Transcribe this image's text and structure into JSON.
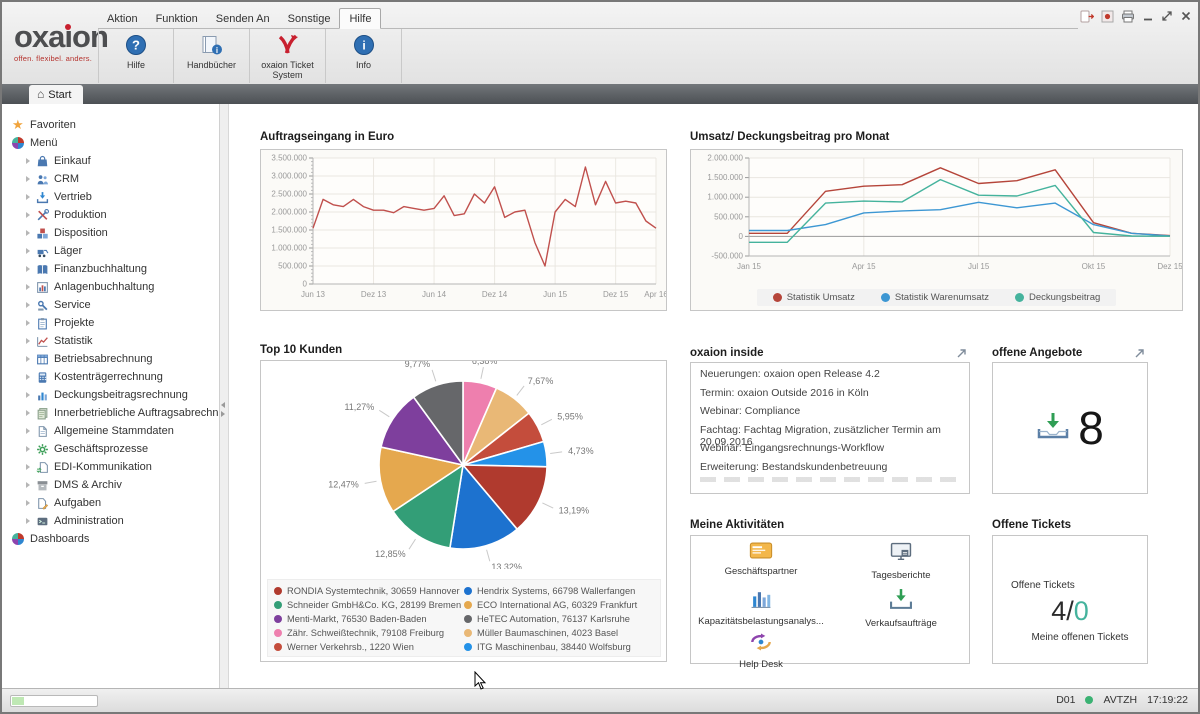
{
  "window": {
    "menu_items": [
      "Aktion",
      "Funktion",
      "Senden An",
      "Sonstige",
      "Hilfe"
    ],
    "active_menu_item": "Hilfe",
    "logo_text": "oxaıon",
    "logo_tagline": "offen. flexibel. anders.",
    "toolbar_buttons": [
      {
        "label": "Hilfe",
        "icon": "help-circle-icon"
      },
      {
        "label": "Handbücher",
        "icon": "manual-book-icon"
      },
      {
        "label": "oxaion Ticket System",
        "icon": "oxaion-bird-icon"
      },
      {
        "label": "Info",
        "icon": "info-circle-icon"
      }
    ],
    "tab_label": "Start"
  },
  "sidebar": {
    "favorites_label": "Favoriten",
    "menu_label": "Menü",
    "dashboards_label": "Dashboards",
    "modules": [
      {
        "label": "Einkauf",
        "icon": "bag-icon"
      },
      {
        "label": "CRM",
        "icon": "people-icon"
      },
      {
        "label": "Vertrieb",
        "icon": "tray-arrow-icon"
      },
      {
        "label": "Produktion",
        "icon": "tools-icon"
      },
      {
        "label": "Disposition",
        "icon": "boxes-icon"
      },
      {
        "label": "Läger",
        "icon": "forklift-icon"
      },
      {
        "label": "Finanzbuchhaltung",
        "icon": "book-icon"
      },
      {
        "label": "Anlagenbuchhaltung",
        "icon": "chart-frame-icon"
      },
      {
        "label": "Service",
        "icon": "service-icon"
      },
      {
        "label": "Projekte",
        "icon": "clipboard-icon"
      },
      {
        "label": "Statistik",
        "icon": "chart-line-icon"
      },
      {
        "label": "Betriebsabrechnung",
        "icon": "table-icon"
      },
      {
        "label": "Kostenträgerrechnung",
        "icon": "calculator-icon"
      },
      {
        "label": "Deckungsbeitragsrechnung",
        "icon": "chart-bars-icon"
      },
      {
        "label": "Innerbetriebliche Auftragsabrechnung",
        "icon": "document-stack-icon"
      },
      {
        "label": "Allgemeine Stammdaten",
        "icon": "document-icon"
      },
      {
        "label": "Geschäftsprozesse",
        "icon": "gear-icon"
      },
      {
        "label": "EDI-Kommunikation",
        "icon": "document-arrows-icon"
      },
      {
        "label": "DMS & Archiv",
        "icon": "archive-icon"
      },
      {
        "label": "Aufgaben",
        "icon": "document-pencil-icon"
      },
      {
        "label": "Administration",
        "icon": "terminal-icon"
      }
    ]
  },
  "chart_data": [
    {
      "type": "line",
      "title": "Auftragseingang in Euro",
      "series": [
        {
          "name": "Auftragseingang",
          "color": "#c0504d",
          "values": [
            1550000,
            2350000,
            2200000,
            2150000,
            2350000,
            2150000,
            2050000,
            2050000,
            1980000,
            2150000,
            2100000,
            2050000,
            2100000,
            2450000,
            1900000,
            1950000,
            2500000,
            2250000,
            2700000,
            1850000,
            2000000,
            2050000,
            1150000,
            500000,
            2000000,
            2350000,
            2150000,
            3250000,
            2200000,
            2850000,
            2250000,
            2300000,
            2250000,
            1750000,
            1550000
          ]
        }
      ],
      "x_tick_labels": [
        {
          "index": 0,
          "label": "Jun 13"
        },
        {
          "index": 6,
          "label": "Dez 13"
        },
        {
          "index": 12,
          "label": "Jun 14"
        },
        {
          "index": 18,
          "label": "Dez 14"
        },
        {
          "index": 24,
          "label": "Jun 15"
        },
        {
          "index": 30,
          "label": "Dez 15"
        },
        {
          "index": 34,
          "label": "Apr 16"
        }
      ],
      "ylim": [
        0,
        3500000
      ],
      "ytick_step": 500000,
      "grid": true
    },
    {
      "type": "line",
      "title": "Umsatz/ Deckungsbeitrag pro Monat",
      "series": [
        {
          "name": "Statistik Umsatz",
          "color": "#b5453a",
          "values": [
            80000,
            80000,
            1150000,
            1280000,
            1320000,
            1750000,
            1350000,
            1420000,
            1700000,
            350000,
            80000,
            20000
          ]
        },
        {
          "name": "Statistik Warenumsatz",
          "color": "#3d97d3",
          "values": [
            150000,
            150000,
            300000,
            600000,
            650000,
            680000,
            870000,
            730000,
            850000,
            300000,
            80000,
            10000
          ]
        },
        {
          "name": "Deckungsbeitrag",
          "color": "#45b39d",
          "values": [
            -150000,
            -150000,
            850000,
            900000,
            880000,
            1450000,
            1050000,
            1030000,
            1300000,
            100000,
            10000,
            5000
          ]
        }
      ],
      "x_tick_labels": [
        {
          "index": 0,
          "label": "Jan 15"
        },
        {
          "index": 3,
          "label": "Apr 15"
        },
        {
          "index": 6,
          "label": "Jul 15"
        },
        {
          "index": 9,
          "label": "Okt 15"
        },
        {
          "index": 11,
          "label": "Dez 15"
        }
      ],
      "ylim": [
        -500000,
        2000000
      ],
      "ytick_step": 500000,
      "grid": true,
      "legend": [
        "Statistik Umsatz",
        "Statistik Warenumsatz",
        "Deckungsbeitrag"
      ],
      "legend_position": "bottom"
    },
    {
      "type": "pie",
      "title": "Top 10 Kunden",
      "slices": [
        {
          "label": "Zähr. Schweißtechnik, 79108 Freiburg",
          "value": 6.38,
          "pct_label": "6,38%",
          "color": "#ee7fae"
        },
        {
          "label": "Müller Baumaschinen, 4023 Basel",
          "value": 7.67,
          "pct_label": "7,67%",
          "color": "#e9b876"
        },
        {
          "label": "Werner Verkehrsb., 1220 Wien",
          "value": 5.95,
          "pct_label": "5,95%",
          "color": "#c44d3c"
        },
        {
          "label": "ITG Maschinenbau, 38440 Wolfsburg",
          "value": 4.73,
          "pct_label": "4,73%",
          "color": "#2492e8"
        },
        {
          "label": "RONDIA Systemtechnik, 30659 Hannover",
          "value": 13.19,
          "pct_label": "13,19%",
          "color": "#b03a2e"
        },
        {
          "label": "Hendrix Systems, 66798 Wallerfangen",
          "value": 13.32,
          "pct_label": "13,32%",
          "color": "#1d72cf"
        },
        {
          "label": "Schneider GmbH&Co. KG, 28199 Bremen",
          "value": 12.85,
          "pct_label": "12,85%",
          "color": "#339e77"
        },
        {
          "label": "ECO International AG, 60329 Frankfurt",
          "value": 12.47,
          "pct_label": "12,47%",
          "color": "#e5a84e"
        },
        {
          "label": "Menti-Markt, 76530 Baden-Baden",
          "value": 11.27,
          "pct_label": "11,27%",
          "color": "#7e3f9d"
        },
        {
          "label": "HeTEC Automation, 76137 Karlsruhe",
          "value": 9.77,
          "pct_label": "9,77%",
          "color": "#66676a"
        }
      ],
      "legend_columns": [
        [
          4,
          6,
          8,
          0,
          2
        ],
        [
          5,
          7,
          9,
          1,
          3
        ]
      ]
    }
  ],
  "panels": {
    "oxaion_inside": {
      "title": "oxaion inside",
      "items": [
        "Neuerungen: oxaion open Release 4.2",
        "Termin: oxaion Outside 2016 in Köln",
        "Webinar: Compliance",
        "Fachtag: Fachtag Migration, zusätzlicher Termin am 20.09.2016",
        "Webinar: Eingangsrechnungs-Workflow",
        "Erweiterung: Bestandskundenbetreuung"
      ]
    },
    "offene_angebote": {
      "title": "offene Angebote",
      "count": "8"
    },
    "meine_aktivitaeten": {
      "title": "Meine Aktivitäten",
      "items": [
        {
          "label": "Geschäftspartner",
          "icon": "card-icon"
        },
        {
          "label": "Tagesberichte",
          "icon": "monitor-icon"
        },
        {
          "label": "Kapazitätsbelastungsanalys...",
          "icon": "capacity-bars-icon"
        },
        {
          "label": "Verkaufsaufträge",
          "icon": "tray-green-icon"
        },
        {
          "label": "Help Desk",
          "icon": "helpdesk-icon"
        }
      ]
    },
    "offene_tickets": {
      "title": "Offene Tickets",
      "label": "Offene Tickets",
      "count_open": "4",
      "separator": "/",
      "count_mine": "0",
      "sub_label": "Meine offenen Tickets"
    }
  },
  "statusbar": {
    "system_id": "D01",
    "session": "AVTZH",
    "time": "17:19:22"
  }
}
